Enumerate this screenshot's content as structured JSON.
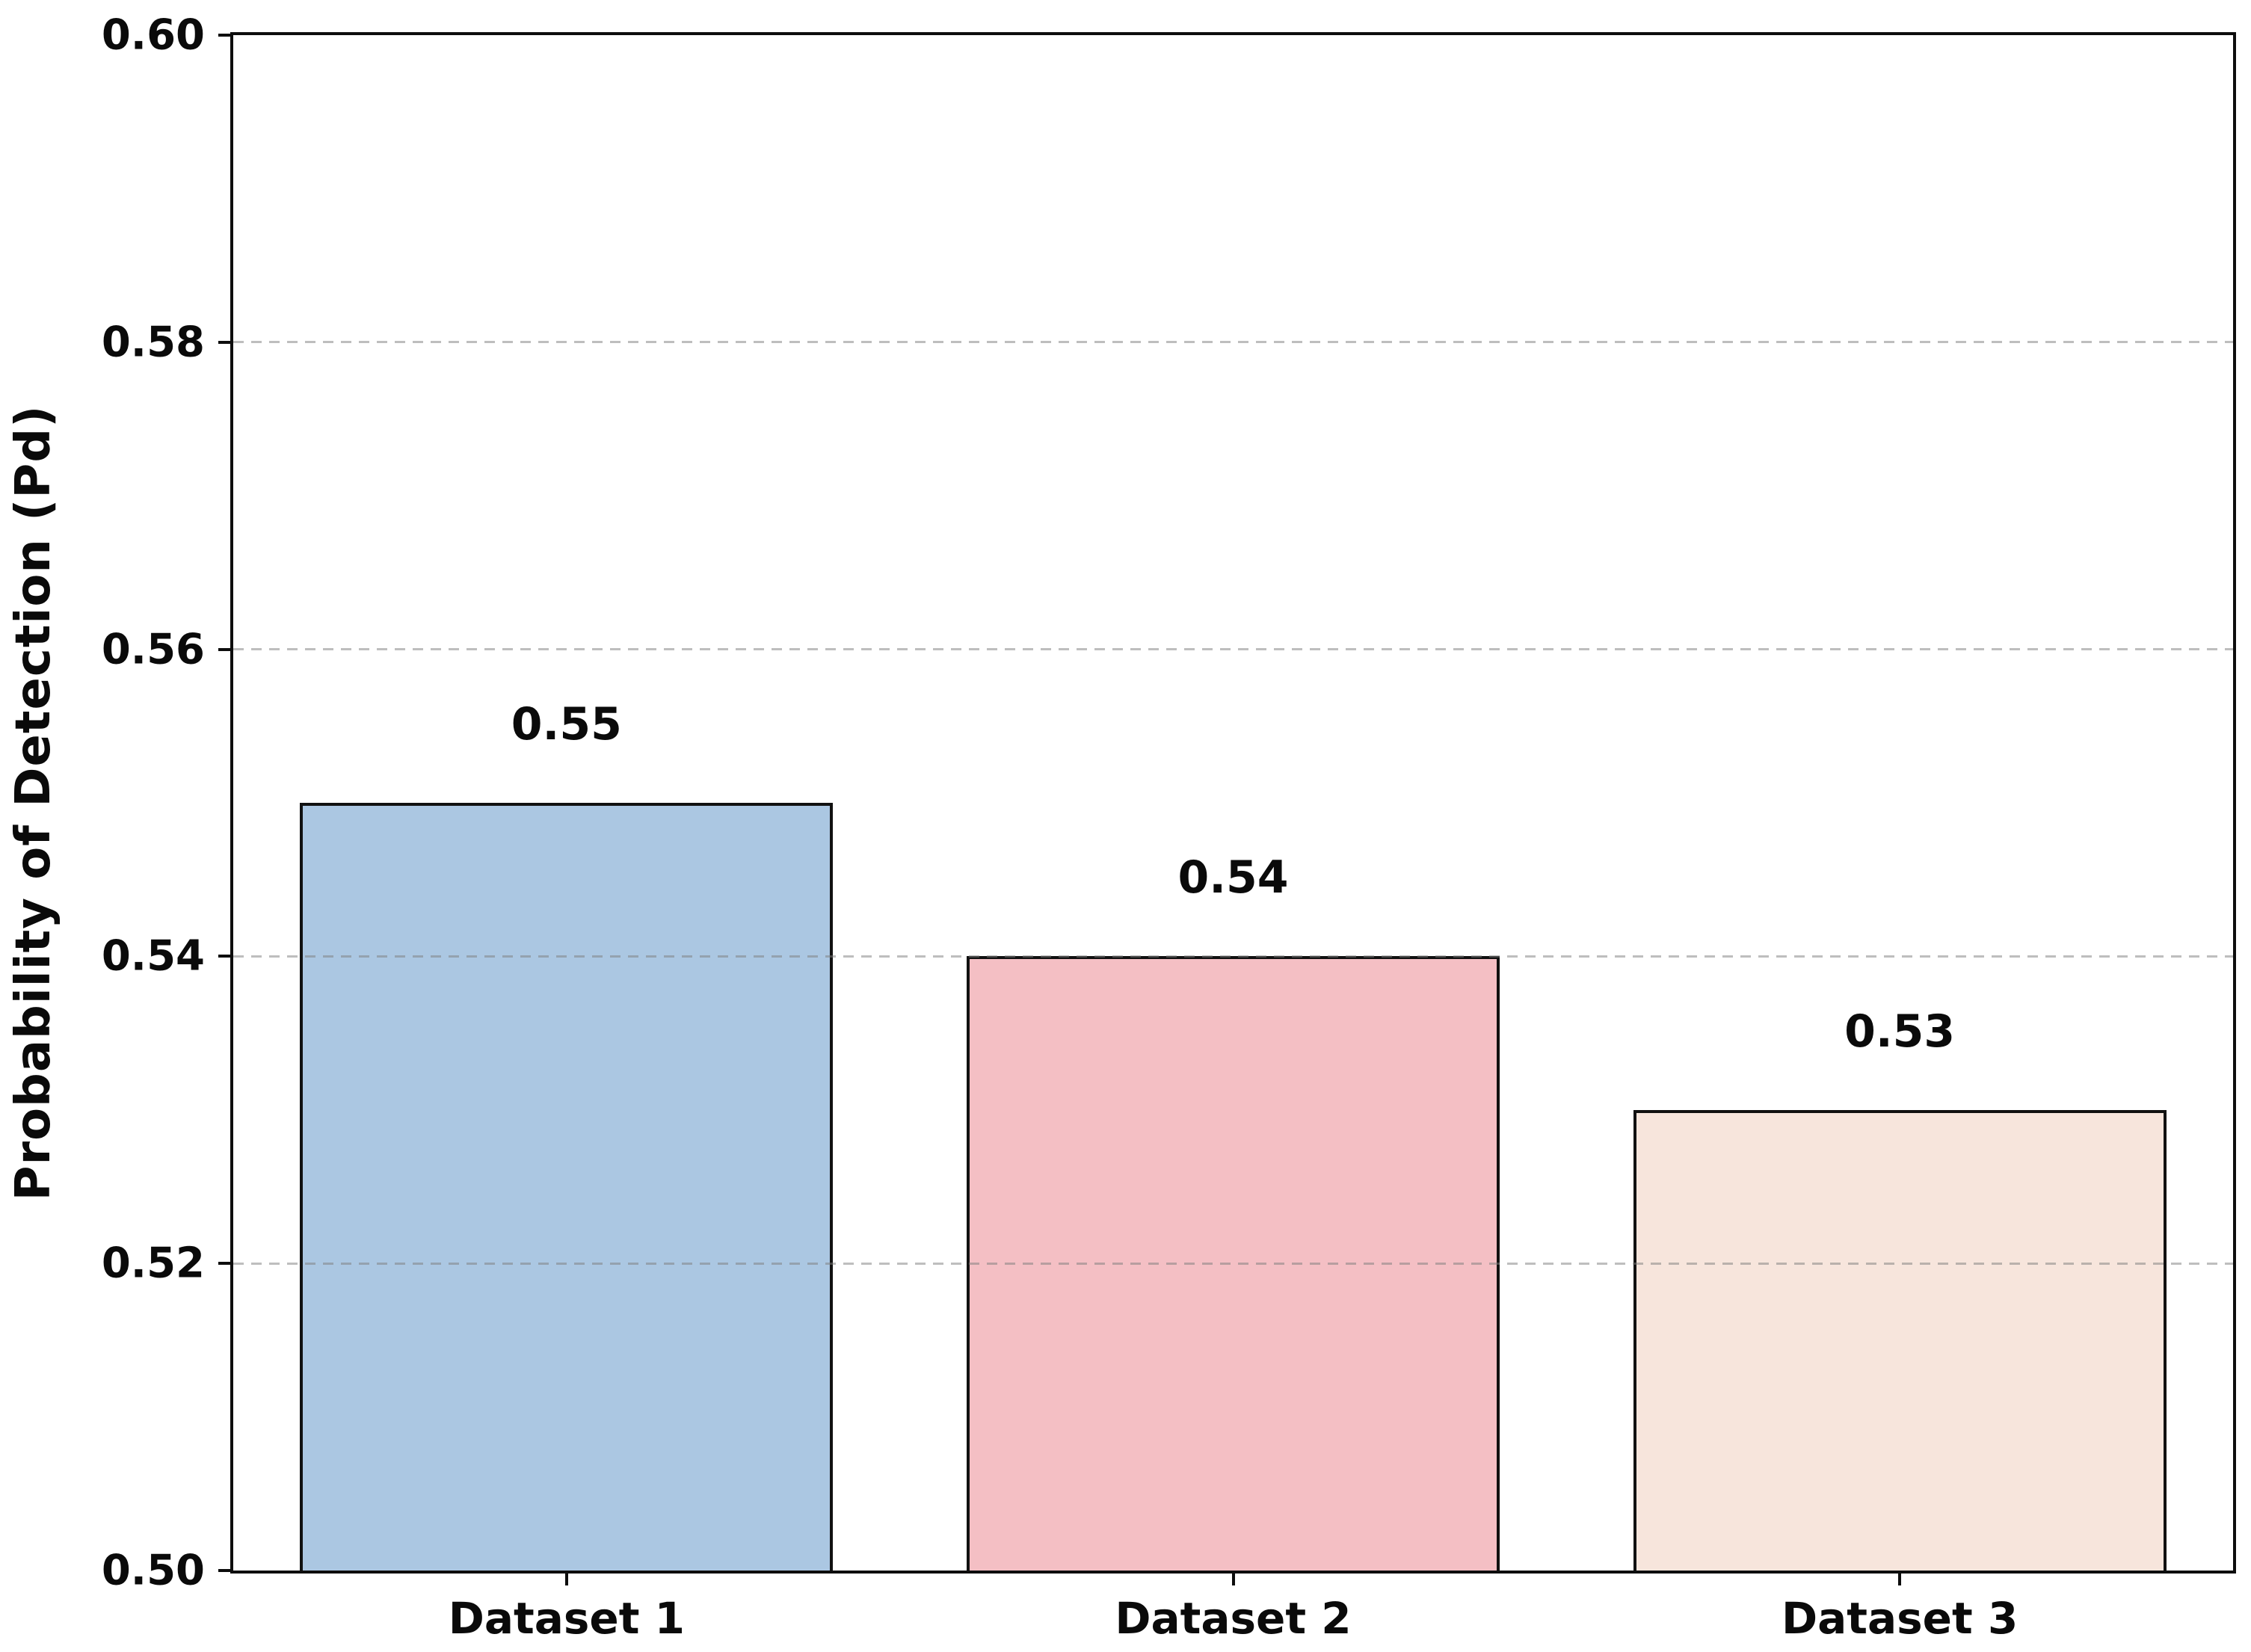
{
  "chart_data": {
    "type": "bar",
    "title": "",
    "xlabel": "",
    "ylabel": "Probability of Detection (Pd)",
    "categories": [
      "Dataset 1",
      "Dataset 2",
      "Dataset 3"
    ],
    "values": [
      0.55,
      0.54,
      0.53
    ],
    "bar_value_labels": [
      "0.55",
      "0.54",
      "0.53"
    ],
    "bar_colors": [
      "#abc7e2",
      "#f4bfc4",
      "#f7e5dc"
    ],
    "bar_edge_color": "#111111",
    "bar_width_fraction": 0.8,
    "ylim": [
      0.5,
      0.6
    ],
    "yticks": [
      0.5,
      0.52,
      0.54,
      0.56,
      0.58,
      0.6
    ],
    "ytick_labels": [
      "0.50",
      "0.52",
      "0.54",
      "0.56",
      "0.58",
      "0.60"
    ],
    "grid": "horizontal dashed",
    "grid_color": "#c3c3c3",
    "legend_position": "none",
    "background_color": "#ffffff"
  }
}
